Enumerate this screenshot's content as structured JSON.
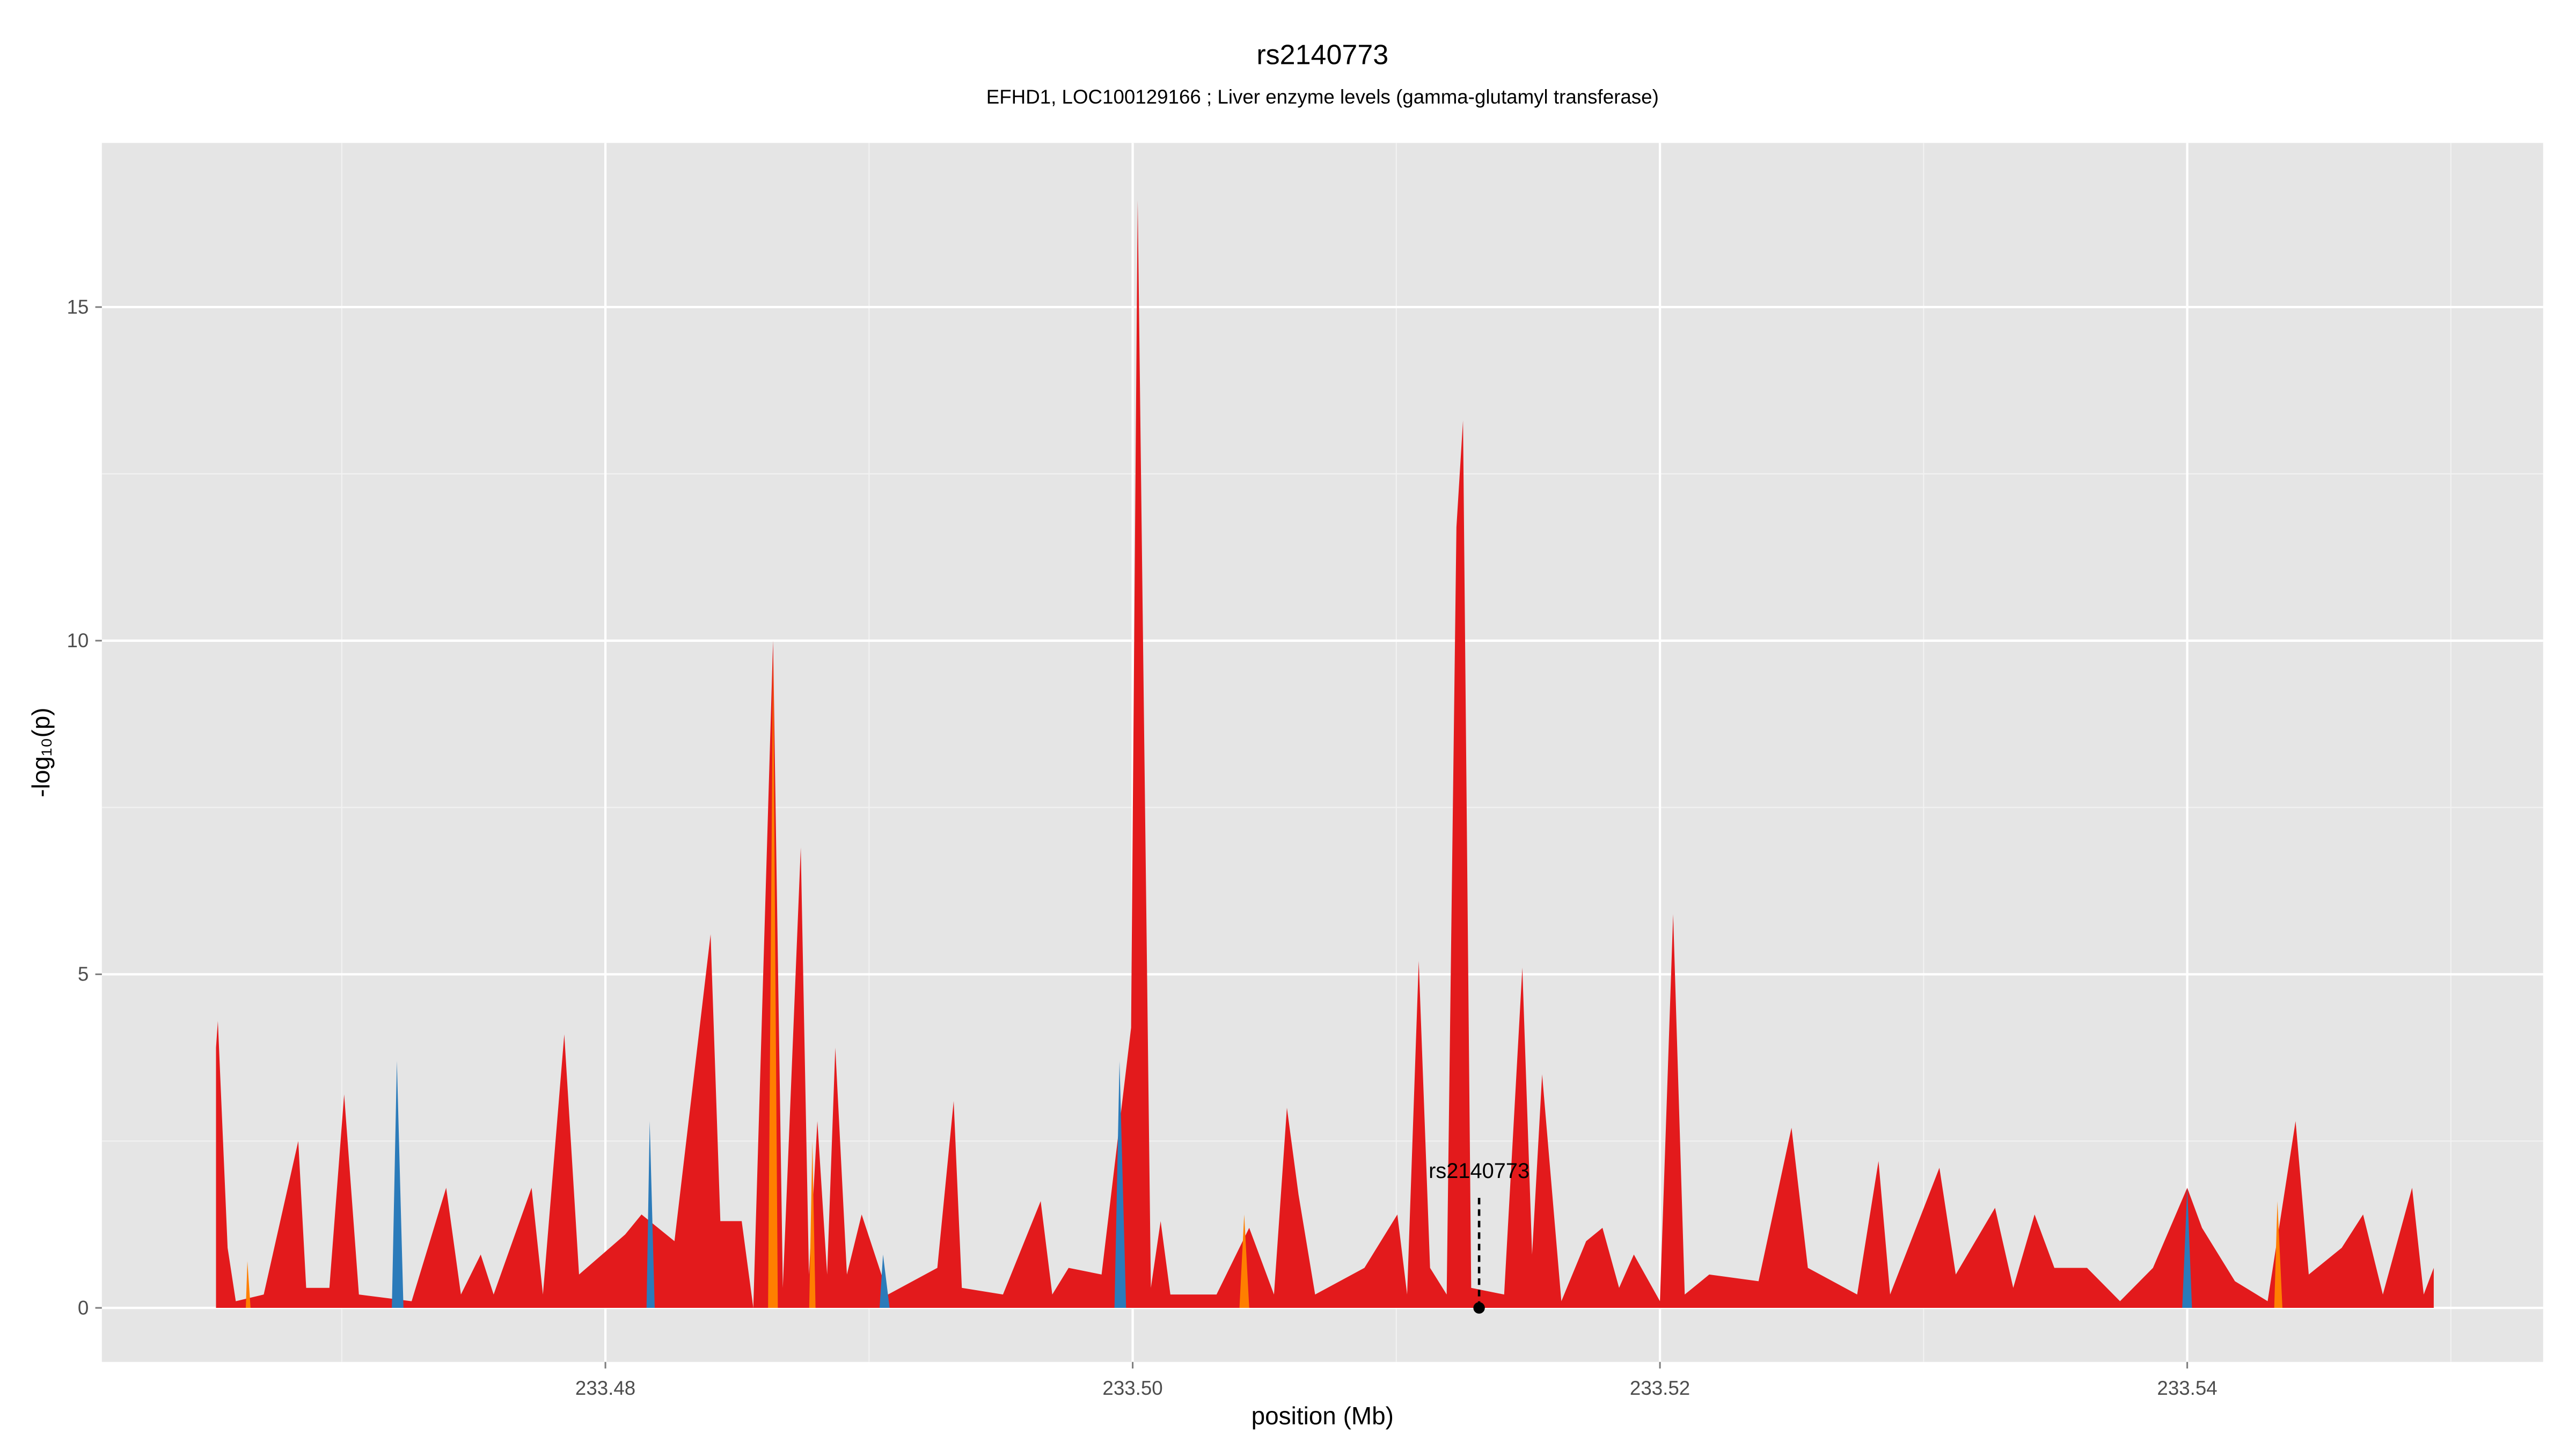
{
  "chart_data": {
    "type": "area",
    "title": "rs2140773",
    "subtitle": "EFHD1, LOC100129166 ; Liver enzyme levels (gamma-glutamyl transferase)",
    "x_label": "position (Mb)",
    "y_label": "-log₁₀(p)",
    "xlim": [
      233.4609,
      233.5535
    ],
    "ylim": [
      -0.81,
      17.46
    ],
    "xticks": [
      233.48,
      {
        "value": 233.5,
        "label": "233.50"
      },
      233.52,
      233.54
    ],
    "yticks": [
      0,
      5,
      10,
      15
    ],
    "xminorticks": [
      233.47,
      233.49,
      233.51,
      233.53,
      233.55
    ],
    "yminorticks": [
      2.5,
      7.5,
      12.5
    ],
    "grid": true,
    "background": "#e5e5e5",
    "series": [
      {
        "name": "red",
        "color": "#e31a1c",
        "x": [
          233.46523,
          233.4653,
          233.46567,
          233.46598,
          233.46704,
          233.46835,
          233.46865,
          233.46953,
          233.47009,
          233.47065,
          233.47265,
          233.47396,
          233.47452,
          233.47527,
          233.47576,
          233.4772,
          233.47763,
          233.47844,
          233.479,
          233.48075,
          233.48137,
          233.48262,
          233.48399,
          233.48436,
          233.48517,
          233.48561,
          233.48636,
          233.48673,
          233.48741,
          233.48772,
          233.48804,
          233.48841,
          233.48872,
          233.48916,
          233.48972,
          233.49072,
          233.49259,
          233.49321,
          233.49352,
          233.49508,
          233.49651,
          233.49695,
          233.49757,
          233.49882,
          233.49994,
          233.50019,
          233.50069,
          233.50106,
          233.50143,
          233.50318,
          233.50442,
          233.50536,
          233.50585,
          233.50629,
          233.50692,
          233.50879,
          233.51004,
          233.51041,
          233.51085,
          233.51128,
          233.51191,
          233.51228,
          233.51253,
          233.51284,
          233.51409,
          233.51478,
          233.51515,
          233.51553,
          233.51626,
          233.5172,
          233.51782,
          233.51845,
          233.51901,
          233.52,
          233.5205,
          233.52094,
          233.52187,
          233.52374,
          233.52499,
          233.52561,
          233.52748,
          233.52829,
          233.52873,
          233.5306,
          233.53122,
          233.53271,
          233.5334,
          233.53421,
          233.53496,
          233.5362,
          233.53745,
          233.5387,
          233.54,
          233.54056,
          233.54181,
          233.54305,
          233.54411,
          233.54461,
          233.54586,
          233.54667,
          233.54742,
          233.54853,
          233.54897,
          233.54935
        ],
        "values": [
          3.9,
          4.3,
          0.9,
          0.1,
          0.2,
          2.5,
          0.3,
          0.3,
          3.2,
          0.2,
          0.1,
          1.8,
          0.2,
          0.8,
          0.2,
          1.8,
          0.2,
          4.1,
          0.5,
          1.1,
          1.4,
          1.0,
          5.6,
          1.3,
          1.3,
          0,
          10.0,
          0.3,
          6.9,
          0.5,
          2.8,
          0.5,
          3.9,
          0.5,
          1.4,
          0.2,
          0.6,
          3.1,
          0.3,
          0.2,
          1.6,
          0.2,
          0.6,
          0.5,
          4.2,
          16.6,
          0.3,
          1.3,
          0.2,
          0.2,
          1.2,
          0.2,
          3.0,
          1.7,
          0.2,
          0.6,
          1.4,
          0.2,
          5.2,
          0.6,
          0.2,
          11.7,
          13.3,
          0.3,
          0.2,
          5.1,
          0.8,
          3.5,
          0.1,
          1.0,
          1.2,
          0.3,
          0.8,
          0.1,
          5.9,
          0.2,
          0.5,
          0.4,
          2.7,
          0.6,
          0.2,
          2.2,
          0.2,
          2.1,
          0.5,
          1.5,
          0.3,
          1.4,
          0.6,
          0.6,
          0.1,
          0.6,
          1.8,
          1.2,
          0.4,
          0.1,
          2.8,
          0.5,
          0.9,
          1.4,
          0.2,
          1.8,
          0.2,
          0.6
        ]
      },
      {
        "name": "blue",
        "color": "#2b7bba",
        "x": [
          233.4719,
          233.47209,
          233.47234,
          null,
          233.48156,
          233.48168,
          233.48187,
          null,
          233.4904,
          233.49053,
          233.49078,
          null,
          233.49931,
          233.4995,
          233.49975,
          null,
          233.53981,
          233.54,
          233.54018
        ],
        "values": [
          0,
          3.7,
          0,
          null,
          0,
          2.8,
          0,
          null,
          0,
          0.8,
          0,
          null,
          0,
          3.7,
          0,
          null,
          0,
          1.8,
          0
        ]
      },
      {
        "name": "orange",
        "color": "#ff7f00",
        "x": [
          233.46636,
          233.46642,
          233.46654,
          null,
          233.48617,
          233.48636,
          233.48654,
          null,
          233.48773,
          233.48785,
          233.48797,
          null,
          233.50405,
          233.50423,
          233.50442,
          null,
          233.5433,
          233.54342,
          233.54361
        ],
        "values": [
          0,
          0.7,
          0,
          null,
          0,
          9.8,
          0,
          null,
          0,
          2.5,
          0,
          null,
          0,
          1.4,
          0,
          null,
          0,
          1.6,
          0
        ]
      }
    ],
    "annotation": {
      "label": "rs2140773",
      "x": 233.51314,
      "y": 0
    }
  }
}
